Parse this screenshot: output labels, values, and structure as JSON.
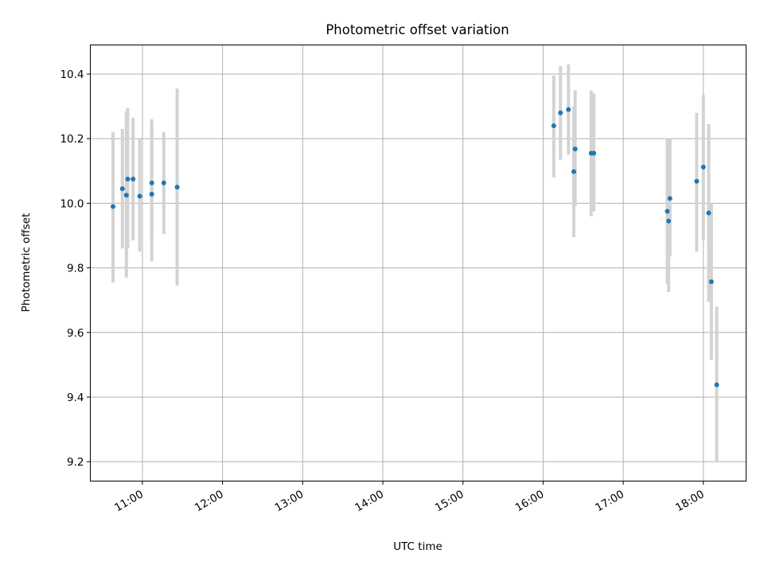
{
  "chart_data": {
    "type": "scatter",
    "title": "Photometric offset variation",
    "xlabel": "UTC time",
    "ylabel": "Photometric offset",
    "xlim": [
      "10:21",
      "18:32"
    ],
    "ylim": [
      9.14,
      10.49
    ],
    "x_ticks": [
      "11:00",
      "12:00",
      "13:00",
      "14:00",
      "15:00",
      "16:00",
      "17:00",
      "18:00"
    ],
    "y_ticks": [
      "9.2",
      "9.4",
      "9.6",
      "9.8",
      "10.0",
      "10.2",
      "10.4"
    ],
    "grid": true,
    "marker_color": "#1f77b4",
    "errorbar_color": "#d3d3d3",
    "points": [
      {
        "x": "10:38",
        "y": 9.99,
        "low": 9.755,
        "high": 10.22
      },
      {
        "x": "10:45",
        "y": 10.045,
        "low": 9.86,
        "high": 10.23
      },
      {
        "x": "10:48",
        "y": 10.025,
        "low": 9.77,
        "high": 10.285
      },
      {
        "x": "10:49",
        "y": 10.075,
        "low": 9.86,
        "high": 10.295
      },
      {
        "x": "10:53",
        "y": 10.075,
        "low": 9.885,
        "high": 10.265
      },
      {
        "x": "10:58",
        "y": 10.022,
        "low": 9.85,
        "high": 10.2
      },
      {
        "x": "11:07",
        "y": 10.028,
        "low": 9.82,
        "high": 10.26
      },
      {
        "x": "11:07",
        "y": 10.063,
        "low": 9.9,
        "high": 10.235
      },
      {
        "x": "11:16",
        "y": 10.063,
        "low": 9.905,
        "high": 10.22
      },
      {
        "x": "11:26",
        "y": 10.05,
        "low": 9.745,
        "high": 10.355
      },
      {
        "x": "16:08",
        "y": 10.24,
        "low": 10.08,
        "high": 10.395
      },
      {
        "x": "16:13",
        "y": 10.28,
        "low": 10.135,
        "high": 10.425
      },
      {
        "x": "16:19",
        "y": 10.29,
        "low": 10.15,
        "high": 10.43
      },
      {
        "x": "16:23",
        "y": 10.098,
        "low": 9.895,
        "high": 10.3
      },
      {
        "x": "16:24",
        "y": 10.168,
        "low": 9.99,
        "high": 10.35
      },
      {
        "x": "16:36",
        "y": 10.155,
        "low": 9.96,
        "high": 10.35
      },
      {
        "x": "16:38",
        "y": 10.155,
        "low": 9.975,
        "high": 10.34
      },
      {
        "x": "17:33",
        "y": 9.975,
        "low": 9.75,
        "high": 10.2
      },
      {
        "x": "17:34",
        "y": 9.945,
        "low": 9.725,
        "high": 10.17
      },
      {
        "x": "17:35",
        "y": 10.015,
        "low": 9.835,
        "high": 10.2
      },
      {
        "x": "17:55",
        "y": 10.068,
        "low": 9.85,
        "high": 10.28
      },
      {
        "x": "18:00",
        "y": 10.112,
        "low": 9.885,
        "high": 10.335
      },
      {
        "x": "18:04",
        "y": 9.97,
        "low": 9.695,
        "high": 10.245
      },
      {
        "x": "18:06",
        "y": 9.757,
        "low": 9.515,
        "high": 10.0
      },
      {
        "x": "18:10",
        "y": 9.438,
        "low": 9.2,
        "high": 9.68
      }
    ]
  }
}
